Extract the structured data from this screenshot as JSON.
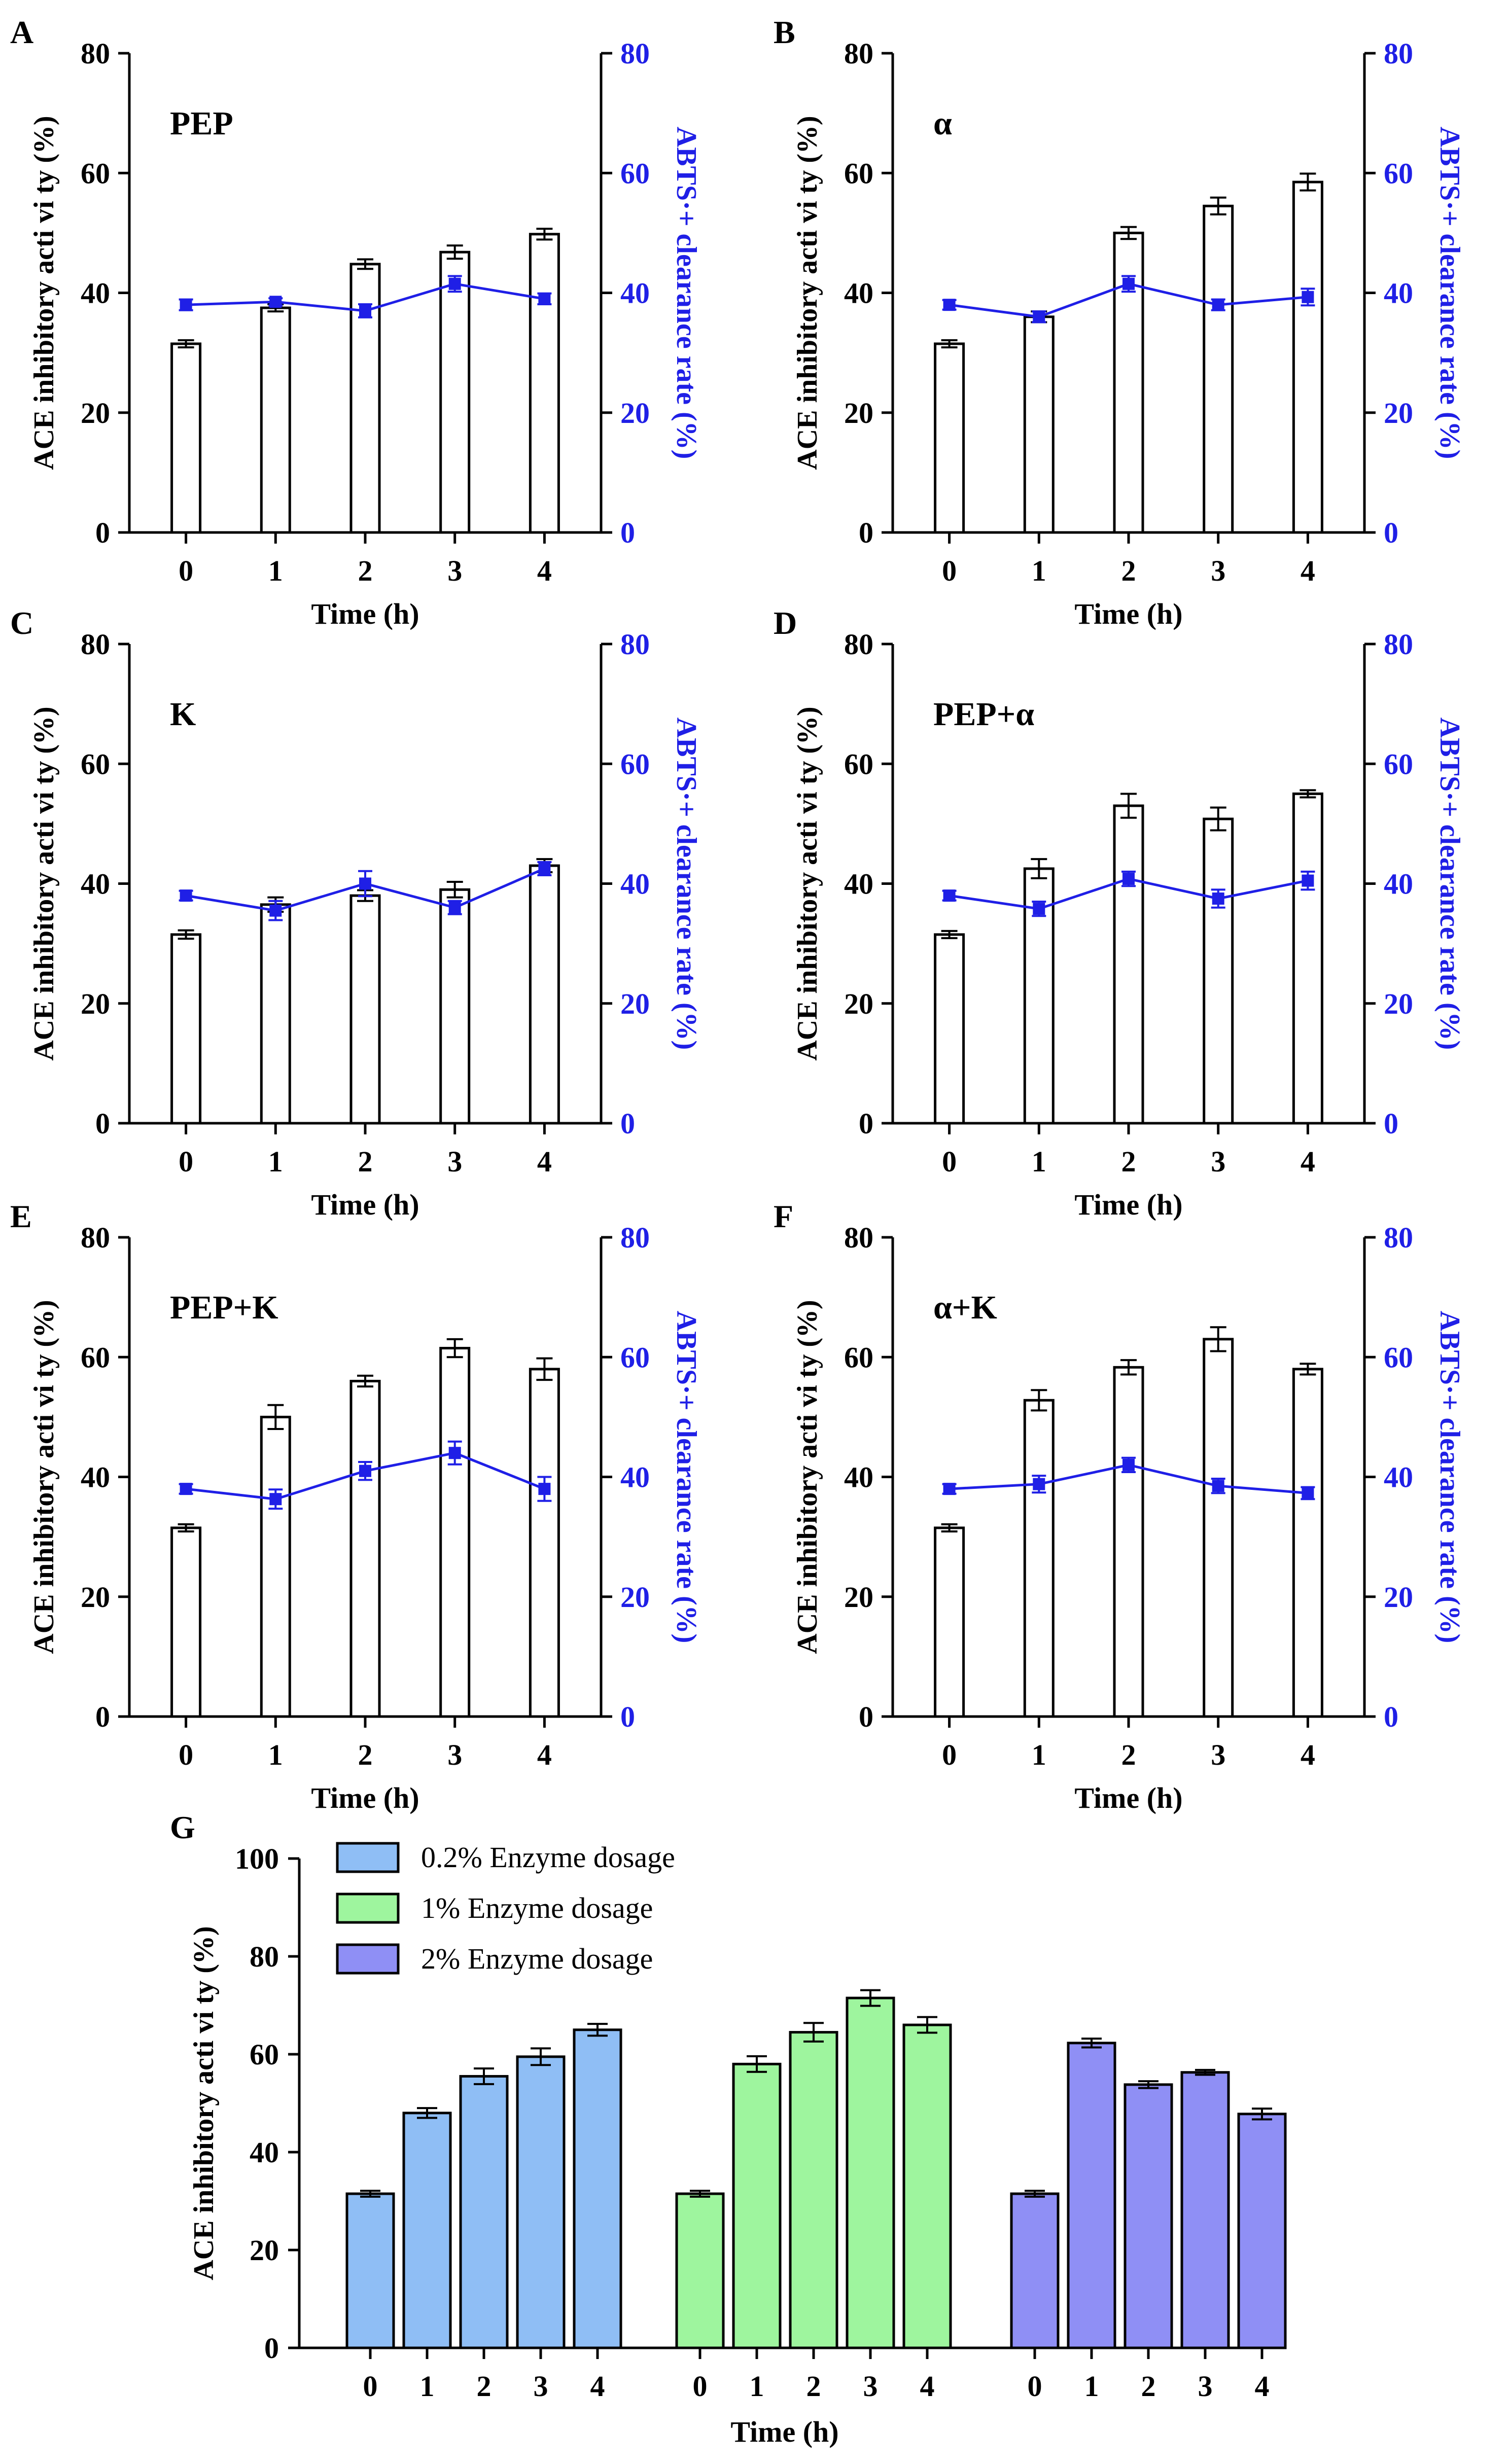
{
  "panels": [
    {
      "letter": "A",
      "enzyme": "PEP",
      "type": "bar+line",
      "x": [
        "0",
        "1",
        "2",
        "3",
        "4"
      ],
      "xlabel": "Time (h)",
      "ylabel_left": "ACE inhibitory acti vi ty (%)",
      "ylabel_right": "ABTS·+ clearance rate (%)",
      "ylim": [
        0,
        80
      ],
      "yticks": [
        "0",
        "20",
        "40",
        "60",
        "80"
      ],
      "series": [
        {
          "name": "ACE inhibitory activity",
          "kind": "bar",
          "axis": "left",
          "values": [
            31.5,
            37.5,
            44.8,
            46.8,
            49.8
          ],
          "errors": [
            0.6,
            0.6,
            0.8,
            1.1,
            0.9
          ]
        },
        {
          "name": "ABTS·+ clearance rate",
          "kind": "line",
          "axis": "right",
          "values": [
            38.0,
            38.5,
            37.0,
            41.5,
            39.0
          ],
          "errors": [
            0.9,
            0.6,
            1.1,
            1.3,
            0.9
          ]
        }
      ]
    },
    {
      "letter": "B",
      "enzyme": "α",
      "type": "bar+line",
      "x": [
        "0",
        "1",
        "2",
        "3",
        "4"
      ],
      "xlabel": "Time (h)",
      "ylabel_left": "ACE inhibitory acti vi ty (%)",
      "ylabel_right": "ABTS·+ clearance rate (%)",
      "ylim": [
        0,
        80
      ],
      "yticks": [
        "0",
        "20",
        "40",
        "60",
        "80"
      ],
      "series": [
        {
          "name": "ACE inhibitory activity",
          "kind": "bar",
          "axis": "left",
          "values": [
            31.5,
            36.0,
            50.0,
            54.5,
            58.5
          ],
          "errors": [
            0.6,
            0.9,
            1.0,
            1.4,
            1.4
          ]
        },
        {
          "name": "ABTS·+ clearance rate",
          "kind": "line",
          "axis": "right",
          "values": [
            38.0,
            36.0,
            41.5,
            38.0,
            39.3
          ],
          "errors": [
            0.8,
            0.9,
            1.3,
            0.9,
            1.4
          ]
        }
      ]
    },
    {
      "letter": "C",
      "enzyme": "K",
      "type": "bar+line",
      "x": [
        "0",
        "1",
        "2",
        "3",
        "4"
      ],
      "xlabel": "Time (h)",
      "ylabel_left": "ACE inhibitory acti vi ty (%)",
      "ylabel_right": "ABTS·+ clearance rate (%)",
      "ylim": [
        0,
        80
      ],
      "yticks": [
        "0",
        "20",
        "40",
        "60",
        "80"
      ],
      "series": [
        {
          "name": "ACE inhibitory activity",
          "kind": "bar",
          "axis": "left",
          "values": [
            31.5,
            36.5,
            38.0,
            39.0,
            43.0
          ],
          "errors": [
            0.7,
            1.2,
            0.9,
            1.3,
            1.1
          ]
        },
        {
          "name": "ABTS·+ clearance rate",
          "kind": "line",
          "axis": "right",
          "values": [
            38.0,
            35.5,
            40.0,
            36.0,
            42.5
          ],
          "errors": [
            0.8,
            1.6,
            2.1,
            1.1,
            1.1
          ]
        }
      ]
    },
    {
      "letter": "D",
      "enzyme": "PEP+α",
      "type": "bar+line",
      "x": [
        "0",
        "1",
        "2",
        "3",
        "4"
      ],
      "xlabel": "Time (h)",
      "ylabel_left": "ACE inhibitory acti vi ty (%)",
      "ylabel_right": "ABTS·+ clearance rate (%)",
      "ylim": [
        0,
        80
      ],
      "yticks": [
        "0",
        "20",
        "40",
        "60",
        "80"
      ],
      "series": [
        {
          "name": "ACE inhibitory activity",
          "kind": "bar",
          "axis": "left",
          "values": [
            31.5,
            42.5,
            53.0,
            50.8,
            55.0
          ],
          "errors": [
            0.6,
            1.6,
            2.0,
            1.9,
            0.6
          ]
        },
        {
          "name": "ABTS·+ clearance rate",
          "kind": "line",
          "axis": "right",
          "values": [
            38.0,
            35.8,
            40.8,
            37.5,
            40.5
          ],
          "errors": [
            0.8,
            1.2,
            1.2,
            1.5,
            1.5
          ]
        }
      ]
    },
    {
      "letter": "E",
      "enzyme": "PEP+K",
      "type": "bar+line",
      "x": [
        "0",
        "1",
        "2",
        "3",
        "4"
      ],
      "xlabel": "Time (h)",
      "ylabel_left": "ACE inhibitory acti vi ty (%)",
      "ylabel_right": "ABTS·+ clearance rate (%)",
      "ylim": [
        0,
        80
      ],
      "yticks": [
        "0",
        "20",
        "40",
        "60",
        "80"
      ],
      "series": [
        {
          "name": "ACE inhibitory activity",
          "kind": "bar",
          "axis": "left",
          "values": [
            31.5,
            50.0,
            56.0,
            61.5,
            58.0
          ],
          "errors": [
            0.6,
            2.0,
            0.9,
            1.5,
            1.8
          ]
        },
        {
          "name": "ABTS·+ clearance rate",
          "kind": "line",
          "axis": "right",
          "values": [
            38.0,
            36.3,
            41.0,
            44.0,
            38.0
          ],
          "errors": [
            0.8,
            1.6,
            1.5,
            1.9,
            2.0
          ]
        }
      ]
    },
    {
      "letter": "F",
      "enzyme": "α+K",
      "type": "bar+line",
      "x": [
        "0",
        "1",
        "2",
        "3",
        "4"
      ],
      "xlabel": "Time (h)",
      "ylabel_left": "ACE inhibitory acti vi ty (%)",
      "ylabel_right": "ABTS·+ clearance rate (%)",
      "ylim": [
        0,
        80
      ],
      "yticks": [
        "0",
        "20",
        "40",
        "60",
        "80"
      ],
      "series": [
        {
          "name": "ACE inhibitory activity",
          "kind": "bar",
          "axis": "left",
          "values": [
            31.5,
            52.8,
            58.3,
            63.0,
            58.0
          ],
          "errors": [
            0.6,
            1.7,
            1.2,
            2.0,
            0.9
          ]
        },
        {
          "name": "ABTS·+ clearance rate",
          "kind": "line",
          "axis": "right",
          "values": [
            38.0,
            38.8,
            42.0,
            38.5,
            37.3
          ],
          "errors": [
            0.8,
            1.4,
            1.2,
            1.2,
            1.0
          ]
        }
      ]
    }
  ],
  "panel_g": {
    "letter": "G",
    "type": "bar",
    "x": [
      "0",
      "1",
      "2",
      "3",
      "4"
    ],
    "xlabel": "Time (h)",
    "ylabel": "ACE inhibitory acti vi ty (%)",
    "ylim": [
      0,
      100
    ],
    "yticks": [
      "0",
      "20",
      "40",
      "60",
      "80",
      "100"
    ],
    "series": [
      {
        "name": "0.2% Enzyme dosage",
        "color": "#8fbef5",
        "values": [
          31.5,
          48.0,
          55.5,
          59.5,
          65.0
        ],
        "errors": [
          0.6,
          1.0,
          1.6,
          1.7,
          1.2
        ]
      },
      {
        "name": "1% Enzyme dosage",
        "color": "#9ef59e",
        "values": [
          31.5,
          58.0,
          64.5,
          71.5,
          66.0
        ],
        "errors": [
          0.6,
          1.6,
          1.9,
          1.6,
          1.6
        ]
      },
      {
        "name": "2% Enzyme dosage",
        "color": "#8f8ff5",
        "values": [
          31.5,
          62.3,
          53.8,
          56.3,
          47.8
        ],
        "errors": [
          0.6,
          0.9,
          0.7,
          0.5,
          1.1
        ]
      }
    ]
  },
  "chart_data": [
    {
      "type": "bar",
      "title": "A PEP",
      "categories": [
        "0",
        "1",
        "2",
        "3",
        "4"
      ],
      "xlabel": "Time (h)",
      "ylabel": "ACE inhibitory activity (%)",
      "ylim": [
        0,
        80
      ],
      "series": [
        {
          "name": "ACE inhibitory activity",
          "values": [
            31.5,
            37.5,
            44.8,
            46.8,
            49.8
          ]
        },
        {
          "name": "ABTS·+ clearance rate",
          "type": "line",
          "values": [
            38.0,
            38.5,
            37.0,
            41.5,
            39.0
          ]
        }
      ]
    },
    {
      "type": "bar",
      "title": "B α",
      "categories": [
        "0",
        "1",
        "2",
        "3",
        "4"
      ],
      "xlabel": "Time (h)",
      "ylabel": "ACE inhibitory activity (%)",
      "ylim": [
        0,
        80
      ],
      "series": [
        {
          "name": "ACE inhibitory activity",
          "values": [
            31.5,
            36.0,
            50.0,
            54.5,
            58.5
          ]
        },
        {
          "name": "ABTS·+ clearance rate",
          "type": "line",
          "values": [
            38.0,
            36.0,
            41.5,
            38.0,
            39.3
          ]
        }
      ]
    },
    {
      "type": "bar",
      "title": "C K",
      "categories": [
        "0",
        "1",
        "2",
        "3",
        "4"
      ],
      "xlabel": "Time (h)",
      "ylabel": "ACE inhibitory activity (%)",
      "ylim": [
        0,
        80
      ],
      "series": [
        {
          "name": "ACE inhibitory activity",
          "values": [
            31.5,
            36.5,
            38.0,
            39.0,
            43.0
          ]
        },
        {
          "name": "ABTS·+ clearance rate",
          "type": "line",
          "values": [
            38.0,
            35.5,
            40.0,
            36.0,
            42.5
          ]
        }
      ]
    },
    {
      "type": "bar",
      "title": "D PEP+α",
      "categories": [
        "0",
        "1",
        "2",
        "3",
        "4"
      ],
      "xlabel": "Time (h)",
      "ylabel": "ACE inhibitory activity (%)",
      "ylim": [
        0,
        80
      ],
      "series": [
        {
          "name": "ACE inhibitory activity",
          "values": [
            31.5,
            42.5,
            53.0,
            50.8,
            55.0
          ]
        },
        {
          "name": "ABTS·+ clearance rate",
          "type": "line",
          "values": [
            38.0,
            35.8,
            40.8,
            37.5,
            40.5
          ]
        }
      ]
    },
    {
      "type": "bar",
      "title": "E PEP+K",
      "categories": [
        "0",
        "1",
        "2",
        "3",
        "4"
      ],
      "xlabel": "Time (h)",
      "ylabel": "ACE inhibitory activity (%)",
      "ylim": [
        0,
        80
      ],
      "series": [
        {
          "name": "ACE inhibitory activity",
          "values": [
            31.5,
            50.0,
            56.0,
            61.5,
            58.0
          ]
        },
        {
          "name": "ABTS·+ clearance rate",
          "type": "line",
          "values": [
            38.0,
            36.3,
            41.0,
            44.0,
            38.0
          ]
        }
      ]
    },
    {
      "type": "bar",
      "title": "F α+K",
      "categories": [
        "0",
        "1",
        "2",
        "3",
        "4"
      ],
      "xlabel": "Time (h)",
      "ylabel": "ACE inhibitory activity (%)",
      "ylim": [
        0,
        80
      ],
      "series": [
        {
          "name": "ACE inhibitory activity",
          "values": [
            31.5,
            52.8,
            58.3,
            63.0,
            58.0
          ]
        },
        {
          "name": "ABTS·+ clearance rate",
          "type": "line",
          "values": [
            38.0,
            38.8,
            42.0,
            38.5,
            37.3
          ]
        }
      ]
    },
    {
      "type": "bar",
      "title": "G",
      "categories": [
        "0",
        "1",
        "2",
        "3",
        "4"
      ],
      "xlabel": "Time (h)",
      "ylabel": "ACE inhibitory activity (%)",
      "ylim": [
        0,
        100
      ],
      "series": [
        {
          "name": "0.2% Enzyme dosage",
          "values": [
            31.5,
            48.0,
            55.5,
            59.5,
            65.0
          ]
        },
        {
          "name": "1% Enzyme dosage",
          "values": [
            31.5,
            58.0,
            64.5,
            71.5,
            66.0
          ]
        },
        {
          "name": "2% Enzyme dosage",
          "values": [
            31.5,
            62.3,
            53.8,
            56.3,
            47.8
          ]
        }
      ]
    }
  ]
}
